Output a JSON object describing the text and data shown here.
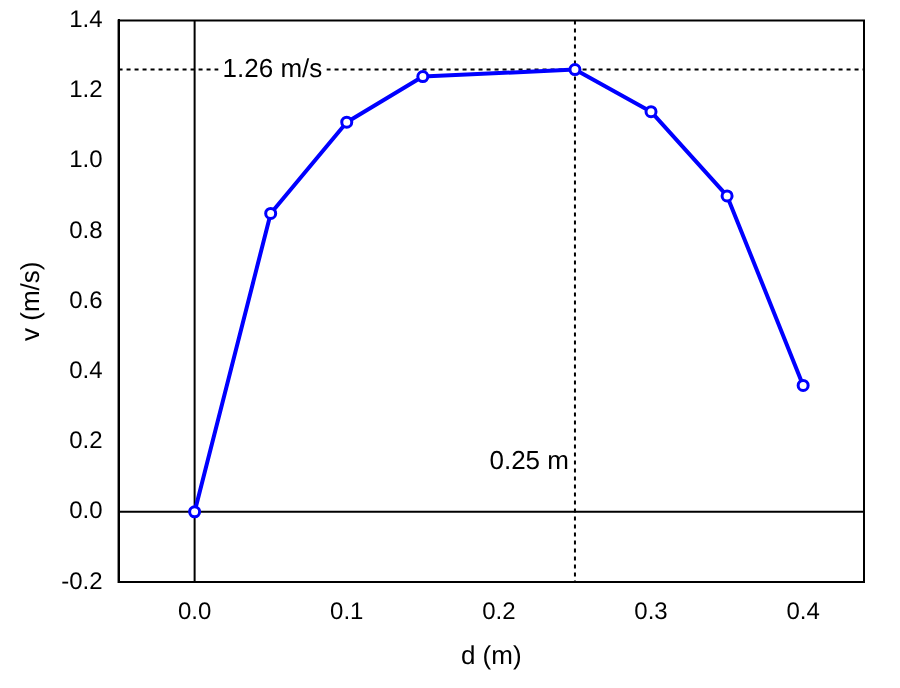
{
  "chart_data": {
    "type": "line",
    "xlabel": "d (m)",
    "ylabel": "v (m/s)",
    "x": [
      0,
      0.05,
      0.1,
      0.15,
      0.25,
      0.3,
      0.35,
      0.4
    ],
    "series": [
      {
        "color": "#0000ff",
        "values": [
          0,
          0.85,
          1.11,
          1.24,
          1.26,
          1.14,
          0.9,
          0.36
        ]
      }
    ],
    "xlim": [
      -0.05,
      0.44
    ],
    "ylim": [
      -0.2,
      1.4
    ],
    "xticks": [
      {
        "value": 0,
        "label": "0.0"
      },
      0.1,
      0.2,
      0.3,
      0.4
    ],
    "yticks": [
      -0.2,
      {
        "value": 0,
        "label": "0.0"
      },
      0.2,
      0.4,
      0.6,
      0.8,
      {
        "value": 1,
        "label": "1.0"
      },
      1.2,
      1.4
    ],
    "ref_lines": [
      {
        "axis": "x",
        "value": 0,
        "line_style": "solid"
      },
      {
        "axis": "y",
        "value": 0,
        "line_style": "solid"
      },
      {
        "axis": "y",
        "value": 1.26,
        "label": "1.26 m/s",
        "line_style": "dotted"
      },
      {
        "axis": "x",
        "value": 0.25,
        "label": "0.25 m",
        "line_style": "dotted"
      }
    ],
    "grid": false,
    "legend": false,
    "marker": "circle",
    "line_style": "solid"
  }
}
